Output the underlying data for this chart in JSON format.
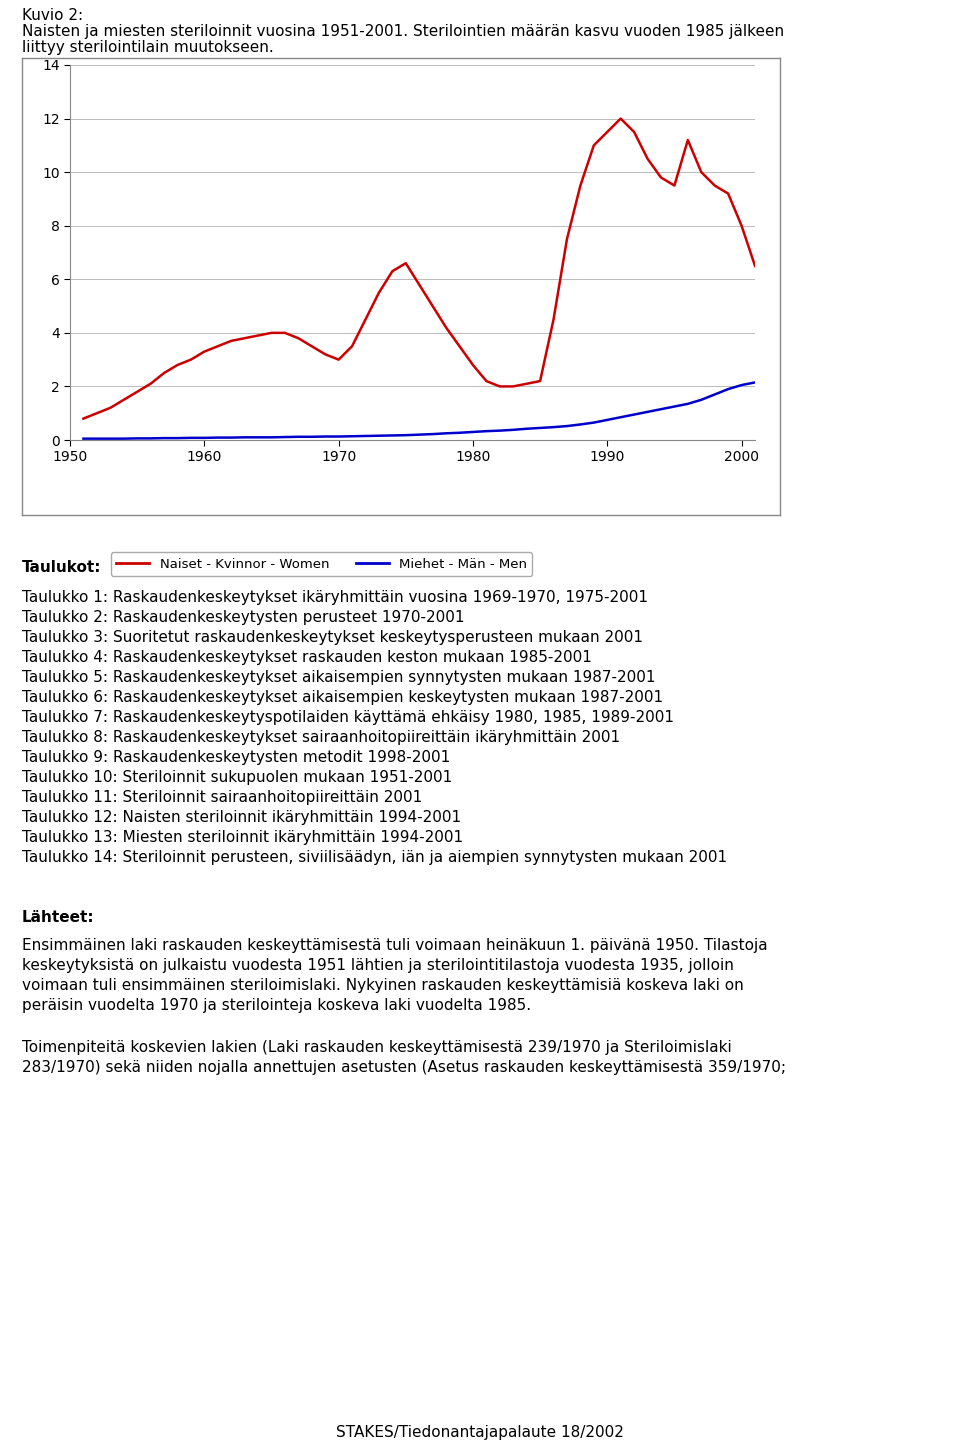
{
  "title_line1": "Kuvio 2:",
  "title_line2": "Naisten ja miesten steriloinnit vuosina 1951-2001. Sterilointien määrän kasvu vuoden 1985 jälkeen",
  "title_line3": "liittyy sterilointilain muutokseen.",
  "women_years": [
    1951,
    1952,
    1953,
    1954,
    1955,
    1956,
    1957,
    1958,
    1959,
    1960,
    1961,
    1962,
    1963,
    1964,
    1965,
    1966,
    1967,
    1968,
    1969,
    1970,
    1971,
    1972,
    1973,
    1974,
    1975,
    1976,
    1977,
    1978,
    1979,
    1980,
    1981,
    1982,
    1983,
    1984,
    1985,
    1986,
    1987,
    1988,
    1989,
    1990,
    1991,
    1992,
    1993,
    1994,
    1995,
    1996,
    1997,
    1998,
    1999,
    2000,
    2001
  ],
  "women_values": [
    0.8,
    1.0,
    1.2,
    1.5,
    1.8,
    2.1,
    2.5,
    2.8,
    3.0,
    3.3,
    3.5,
    3.7,
    3.8,
    3.9,
    4.0,
    4.0,
    3.8,
    3.5,
    3.2,
    3.0,
    3.5,
    4.5,
    5.5,
    6.3,
    6.6,
    5.8,
    5.0,
    4.2,
    3.5,
    2.8,
    2.2,
    2.0,
    2.0,
    2.1,
    2.2,
    4.5,
    7.5,
    9.5,
    11.0,
    11.5,
    12.0,
    11.5,
    10.5,
    9.8,
    9.5,
    11.2,
    10.0,
    9.5,
    9.2,
    8.0,
    6.5
  ],
  "men_years": [
    1951,
    1952,
    1953,
    1954,
    1955,
    1956,
    1957,
    1958,
    1959,
    1960,
    1961,
    1962,
    1963,
    1964,
    1965,
    1966,
    1967,
    1968,
    1969,
    1970,
    1971,
    1972,
    1973,
    1974,
    1975,
    1976,
    1977,
    1978,
    1979,
    1980,
    1981,
    1982,
    1983,
    1984,
    1985,
    1986,
    1987,
    1988,
    1989,
    1990,
    1991,
    1992,
    1993,
    1994,
    1995,
    1996,
    1997,
    1998,
    1999,
    2000,
    2001
  ],
  "men_values": [
    0.05,
    0.05,
    0.05,
    0.05,
    0.06,
    0.06,
    0.07,
    0.07,
    0.08,
    0.08,
    0.09,
    0.09,
    0.1,
    0.1,
    0.1,
    0.11,
    0.12,
    0.12,
    0.13,
    0.13,
    0.14,
    0.15,
    0.16,
    0.17,
    0.18,
    0.2,
    0.22,
    0.25,
    0.27,
    0.3,
    0.33,
    0.35,
    0.38,
    0.42,
    0.45,
    0.48,
    0.52,
    0.58,
    0.65,
    0.75,
    0.85,
    0.95,
    1.05,
    1.15,
    1.25,
    1.35,
    1.5,
    1.7,
    1.9,
    2.05,
    2.15
  ],
  "women_color": "#cc0000",
  "men_color": "#0000cc",
  "ylim": [
    0,
    14
  ],
  "yticks": [
    0,
    2,
    4,
    6,
    8,
    10,
    12,
    14
  ],
  "xlim": [
    1950,
    2001
  ],
  "xticks": [
    1950,
    1960,
    1970,
    1980,
    1990,
    2000
  ],
  "legend_women": "Naiset - Kvinnor - Women",
  "legend_men": "Miehet - Män - Men",
  "taulukot_header": "Taulukot:",
  "taulukot_items": [
    "Taulukko 1: Raskaudenkeskeytykset ikäryhmittäin vuosina 1969-1970, 1975-2001",
    "Taulukko 2: Raskaudenkeskeytysten perusteet 1970-2001",
    "Taulukko 3: Suoritetut raskaudenkeskeytykset keskeytysperusteen mukaan 2001",
    "Taulukko 4: Raskaudenkeskeytykset raskauden keston mukaan 1985-2001",
    "Taulukko 5: Raskaudenkeskeytykset aikaisempien synnytysten mukaan 1987-2001",
    "Taulukko 6: Raskaudenkeskeytykset aikaisempien keskeytysten mukaan 1987-2001",
    "Taulukko 7: Raskaudenkeskeytyspotilaiden käyttämä ehkäisy 1980, 1985, 1989-2001",
    "Taulukko 8: Raskaudenkeskeytykset sairaanhoitopiireittäin ikäryhmittäin 2001",
    "Taulukko 9: Raskaudenkeskeytysten metodit 1998-2001",
    "Taulukko 10: Steriloinnit sukupuolen mukaan 1951-2001",
    "Taulukko 11: Steriloinnit sairaanhoitopiireittäin 2001",
    "Taulukko 12: Naisten steriloinnit ikäryhmittäin 1994-2001",
    "Taulukko 13: Miesten steriloinnit ikäryhmittäin 1994-2001",
    "Taulukko 14: Steriloinnit perusteen, siviilisäädyn, iän ja aiempien synnytysten mukaan 2001"
  ],
  "lahteet_header": "Lähteet:",
  "lahteet_para1_lines": [
    "Ensimmäinen laki raskauden keskeyttämisestä tuli voimaan heinäkuun 1. päivänä 1950. Tilastoja",
    "keskeytyksistä on julkaistu vuodesta 1951 lähtien ja sterilointitilastoja vuodesta 1935, jolloin",
    "voimaan tuli ensimmäinen steriloimislaki. Nykyinen raskauden keskeyttämisiä koskeva laki on",
    "peräisin vuodelta 1970 ja sterilointeja koskeva laki vuodelta 1985."
  ],
  "lahteet_para2_lines": [
    "Toimenpiteitä koskevien lakien (Laki raskauden keskeyttämisestä 239/1970 ja Steriloimislaki",
    "283/1970) sekä niiden nojalla annettujen asetusten (Asetus raskauden keskeyttämisestä 359/1970;"
  ],
  "footer": "STAKES/Tiedonantajapalaute 18/2002",
  "bg_color": "#ffffff",
  "text_color": "#000000",
  "chart_box_color": "#808080"
}
